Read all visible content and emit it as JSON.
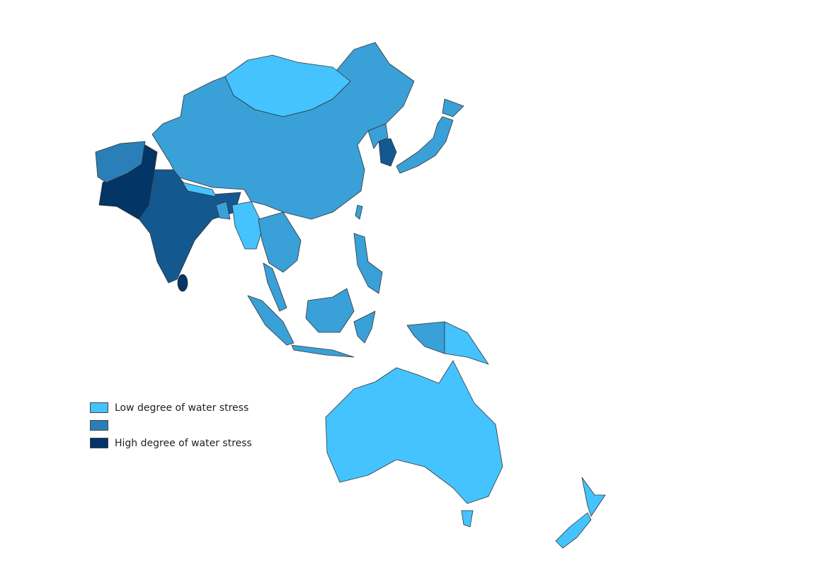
{
  "colors": {
    "low": "#44c3ff",
    "mid_light": "#3aa0d8",
    "mid": "#2a7fb8",
    "mid_dark": "#13588f",
    "high": "#033566"
  },
  "legend": {
    "items": [
      {
        "label": "Low degree of water stress",
        "color": "#44c3ff"
      },
      {
        "label": "",
        "color": "#2a7fb8"
      },
      {
        "label": "High degree of water stress",
        "color": "#033566"
      }
    ]
  }
}
